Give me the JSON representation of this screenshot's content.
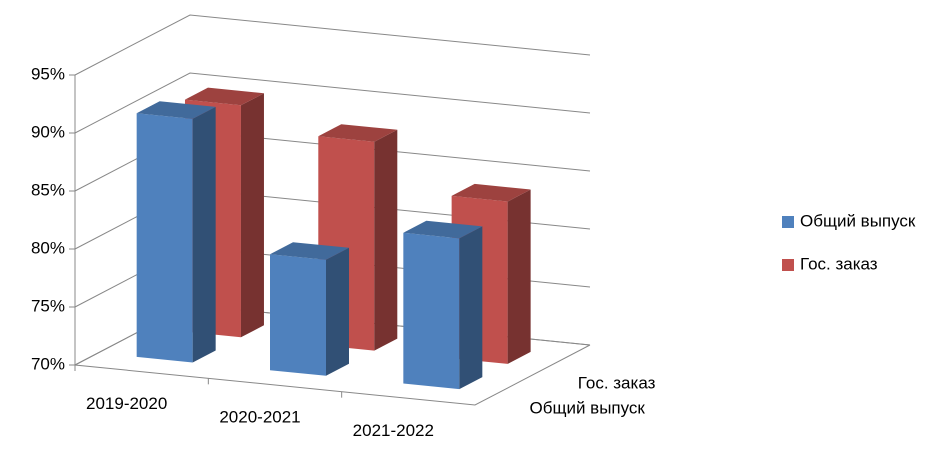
{
  "chart_data": {
    "type": "bar3d",
    "categories": [
      "2019-2020",
      "2020-2021",
      "2021-2022"
    ],
    "series": [
      {
        "name": "Общий выпуск",
        "color": "#4f81bd",
        "values": [
          91,
          80,
          83
        ]
      },
      {
        "name": "Гос. заказ",
        "color": "#c0504d",
        "values": [
          90,
          88,
          84
        ]
      }
    ],
    "ylim": [
      70,
      95
    ],
    "yticks": [
      {
        "value": 70,
        "label": "70%"
      },
      {
        "value": 75,
        "label": "75%"
      },
      {
        "value": 80,
        "label": "80%"
      },
      {
        "value": 85,
        "label": "85%"
      },
      {
        "value": 90,
        "label": "90%"
      },
      {
        "value": 95,
        "label": "95%"
      }
    ],
    "grid": true,
    "legend": "right"
  }
}
